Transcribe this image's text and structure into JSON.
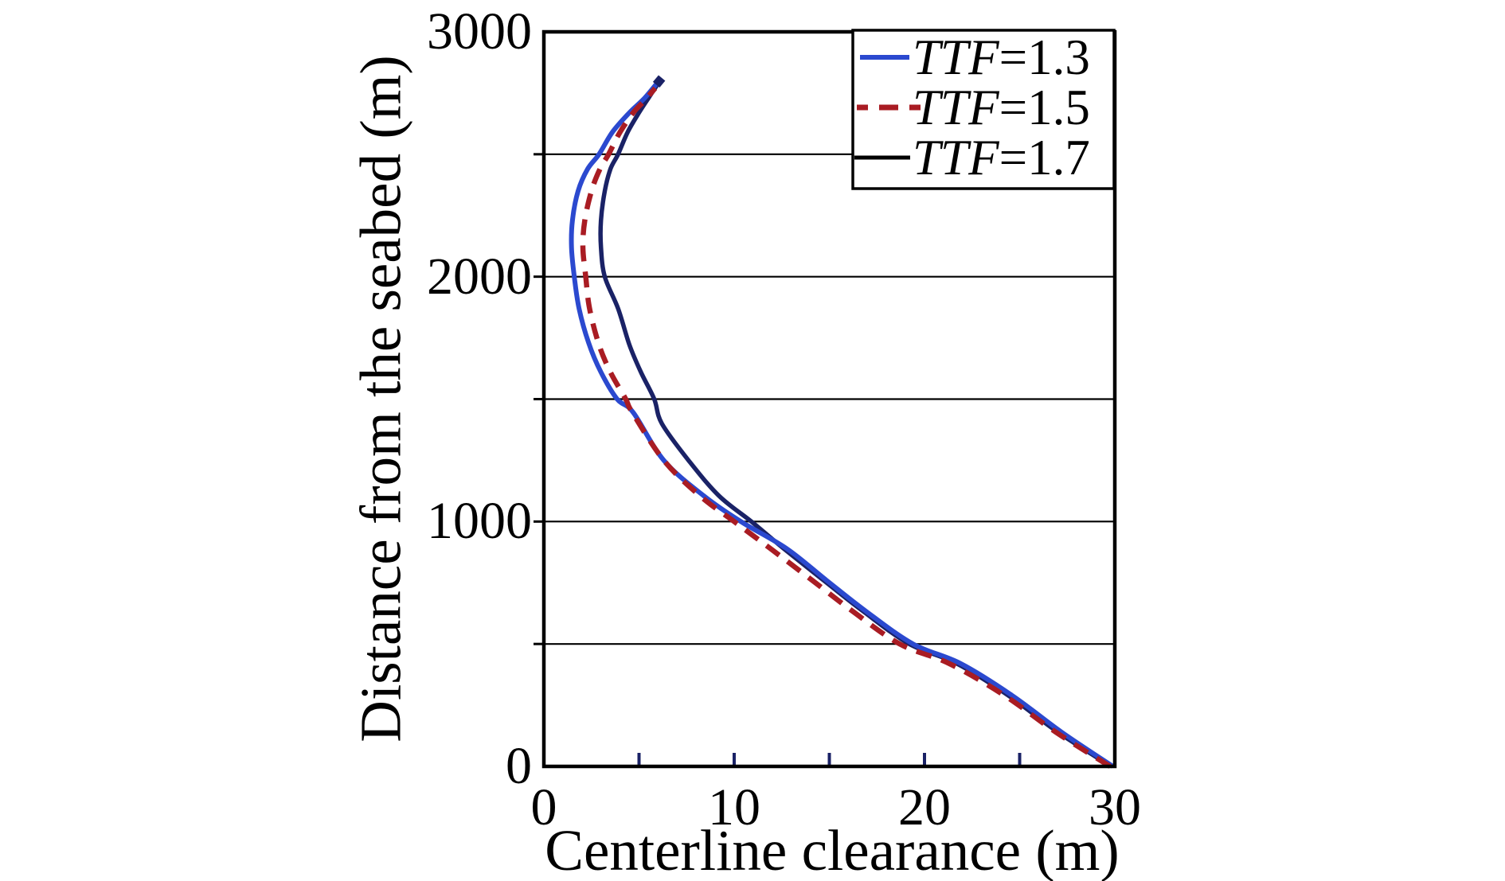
{
  "figure": {
    "background": "#ffffff"
  },
  "chart_data": {
    "type": "line",
    "title": "",
    "xlabel": "Centerline clearance (m)",
    "ylabel": "Distance from the seabed (m)",
    "xlim": [
      0,
      30
    ],
    "ylim": [
      0,
      3000
    ],
    "x_tick_labels": [
      "0",
      "10",
      "20",
      "30"
    ],
    "x_tick_values": [
      0,
      10,
      20,
      30
    ],
    "x_minor_tick_values": [
      5,
      10,
      15,
      20,
      25
    ],
    "y_tick_labels": [
      "0",
      "1000",
      "2000",
      "3000"
    ],
    "y_tick_values": [
      0,
      1000,
      2000,
      3000
    ],
    "y_gridline_values": [
      500,
      1000,
      1500,
      2000,
      2500
    ],
    "grid": "horizontal-only",
    "legend_position": "top-right",
    "axis_color": "#000000",
    "x_tick_color": "#1a2266",
    "series": [
      {
        "name": "TTF=1.3",
        "label_var": "TTF",
        "label_value": "=1.3",
        "color": "#2b49cf",
        "style": "solid",
        "points": [
          [
            29.9,
            0
          ],
          [
            27.2,
            140
          ],
          [
            24.6,
            290
          ],
          [
            21.9,
            420
          ],
          [
            19.4,
            500
          ],
          [
            16.9,
            635
          ],
          [
            14.85,
            760
          ],
          [
            12.75,
            890
          ],
          [
            10.35,
            1000
          ],
          [
            8.4,
            1105
          ],
          [
            6.3,
            1250
          ],
          [
            4.7,
            1445
          ],
          [
            3.85,
            1500
          ],
          [
            3.0,
            1610
          ],
          [
            2.35,
            1730
          ],
          [
            1.85,
            1870
          ],
          [
            1.6,
            2000
          ],
          [
            1.45,
            2120
          ],
          [
            1.5,
            2230
          ],
          [
            1.8,
            2350
          ],
          [
            2.3,
            2440
          ],
          [
            2.9,
            2500
          ],
          [
            3.6,
            2590
          ],
          [
            4.5,
            2670
          ],
          [
            5.3,
            2730
          ],
          [
            6.05,
            2800
          ]
        ]
      },
      {
        "name": "TTF=1.5",
        "label_var": "TTF",
        "label_value": "=1.5",
        "color": "#a91c23",
        "style": "dashed",
        "points": [
          [
            29.75,
            0
          ],
          [
            26.9,
            140
          ],
          [
            24.2,
            290
          ],
          [
            21.3,
            420
          ],
          [
            18.7,
            500
          ],
          [
            16.2,
            635
          ],
          [
            14.1,
            760
          ],
          [
            11.9,
            890
          ],
          [
            10.0,
            1000
          ],
          [
            8.2,
            1105
          ],
          [
            6.3,
            1250
          ],
          [
            4.65,
            1445
          ],
          [
            4.3,
            1500
          ],
          [
            3.5,
            1610
          ],
          [
            2.9,
            1721
          ],
          [
            2.4,
            1870
          ],
          [
            2.2,
            2000
          ],
          [
            2.05,
            2120
          ],
          [
            2.15,
            2230
          ],
          [
            2.5,
            2350
          ],
          [
            2.95,
            2440
          ],
          [
            3.4,
            2500
          ],
          [
            4.0,
            2590
          ],
          [
            4.7,
            2670
          ],
          [
            5.3,
            2720
          ],
          [
            5.85,
            2770
          ]
        ]
      },
      {
        "name": "TTF=1.7",
        "label_var": "TTF",
        "label_value": "=1.7",
        "color": "#1a2266",
        "style": "solid",
        "points": [
          [
            29.8,
            0
          ],
          [
            27.0,
            140
          ],
          [
            24.4,
            290
          ],
          [
            21.7,
            420
          ],
          [
            19.2,
            500
          ],
          [
            16.75,
            635
          ],
          [
            14.7,
            760
          ],
          [
            12.6,
            890
          ],
          [
            10.9,
            1000
          ],
          [
            9.2,
            1105
          ],
          [
            7.6,
            1250
          ],
          [
            6.2,
            1400
          ],
          [
            5.8,
            1500
          ],
          [
            5.1,
            1610
          ],
          [
            4.5,
            1721
          ],
          [
            3.9,
            1870
          ],
          [
            3.2,
            2000
          ],
          [
            3.0,
            2120
          ],
          [
            3.0,
            2230
          ],
          [
            3.2,
            2350
          ],
          [
            3.5,
            2440
          ],
          [
            3.9,
            2500
          ],
          [
            4.4,
            2590
          ],
          [
            5.0,
            2670
          ],
          [
            5.5,
            2730
          ],
          [
            6.1,
            2800
          ]
        ]
      }
    ]
  }
}
